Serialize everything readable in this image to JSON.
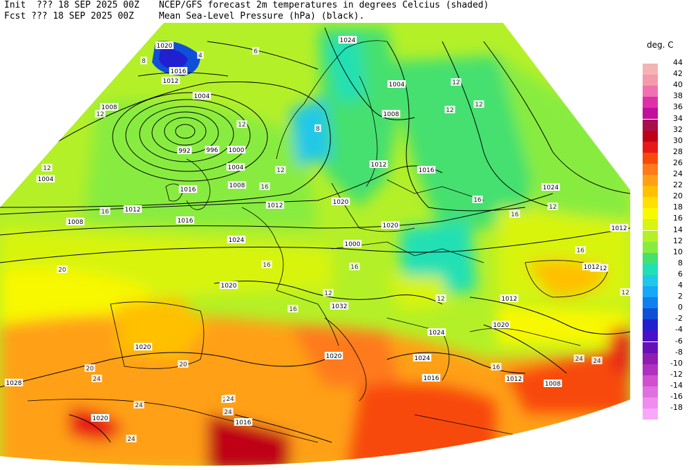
{
  "header": {
    "line1_left": "Init  ??? 18 SEP 2025 00Z",
    "line1_right": "NCEP/GFS forecast 2m temperatures in degrees Celcius (shaded)",
    "line2_left": "Fcst ??? 18 SEP 2025 00Z",
    "line2_right": "Mean Sea-Level Pressure (hPa) (black)."
  },
  "legend": {
    "title": "deg. C",
    "levels": [
      {
        "value": "44",
        "color": "#f4b4b4"
      },
      {
        "value": "42",
        "color": "#f49aaa"
      },
      {
        "value": "40",
        "color": "#f070b0"
      },
      {
        "value": "38",
        "color": "#e030a8"
      },
      {
        "value": "36",
        "color": "#c0109c"
      },
      {
        "value": "34",
        "color": "#a8104c"
      },
      {
        "value": "32",
        "color": "#c00018"
      },
      {
        "value": "30",
        "color": "#e81818"
      },
      {
        "value": "28",
        "color": "#f84a0c"
      },
      {
        "value": "26",
        "color": "#ff7a1a"
      },
      {
        "value": "24",
        "color": "#ffa018"
      },
      {
        "value": "22",
        "color": "#ffc000"
      },
      {
        "value": "20",
        "color": "#ffe000"
      },
      {
        "value": "18",
        "color": "#f8f800"
      },
      {
        "value": "16",
        "color": "#d8f410"
      },
      {
        "value": "14",
        "color": "#b4f028"
      },
      {
        "value": "12",
        "color": "#88ec40"
      },
      {
        "value": "10",
        "color": "#44e070"
      },
      {
        "value": "8",
        "color": "#20e0b4"
      },
      {
        "value": "6",
        "color": "#20c8e8"
      },
      {
        "value": "4",
        "color": "#18a8f8"
      },
      {
        "value": "2",
        "color": "#1080f0"
      },
      {
        "value": "0",
        "color": "#1050d8"
      },
      {
        "value": "-2",
        "color": "#2020d0"
      },
      {
        "value": "-4",
        "color": "#4810c8"
      },
      {
        "value": "-6",
        "color": "#6810b8"
      },
      {
        "value": "-8",
        "color": "#901cb0"
      },
      {
        "value": "-10",
        "color": "#b030c0"
      },
      {
        "value": "-12",
        "color": "#d050d0"
      },
      {
        "value": "-14",
        "color": "#e070e0"
      },
      {
        "value": "-16",
        "color": "#f08cf0"
      },
      {
        "value": "-18",
        "color": "#f8a8f8"
      }
    ]
  },
  "isobar_labels": [
    "1020",
    "1016",
    "1012",
    "1004",
    "1008",
    "1004",
    "992",
    "996",
    "1000",
    "1004",
    "1008",
    "1012",
    "1008",
    "1016",
    "1012",
    "1020",
    "1024",
    "1000",
    "1004",
    "1008",
    "1012",
    "1016",
    "1020",
    "1024",
    "1020",
    "1012",
    "1012",
    "1024",
    "1032",
    "1024",
    "1020",
    "1020",
    "1028",
    "1016",
    "1012",
    "1008",
    "1020",
    "1016",
    "1020",
    "1020",
    "1024",
    "1012",
    "1016",
    "1012"
  ],
  "temperature_labels": [
    "8",
    "4",
    "6",
    "12",
    "12",
    "12",
    "12",
    "12",
    "12",
    "16",
    "12",
    "8",
    "16",
    "20",
    "16",
    "16",
    "12",
    "16",
    "16",
    "16",
    "12",
    "16",
    "16",
    "12",
    "20",
    "24",
    "20",
    "24",
    "24",
    "24",
    "24",
    "24",
    "24",
    "24",
    "12"
  ]
}
